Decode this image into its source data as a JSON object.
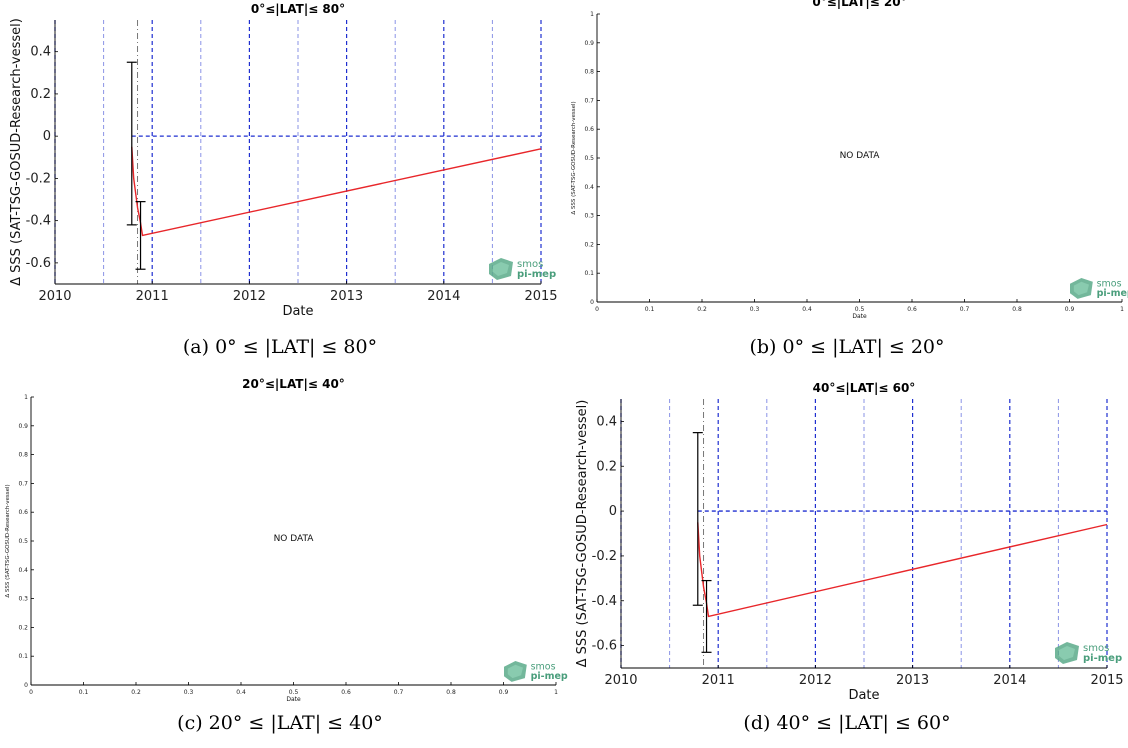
{
  "logo": {
    "line1": "smos",
    "line2": "pi-mep",
    "color": "#5aaa8a"
  },
  "colors": {
    "fit": "#e8262a",
    "dash": "#1f2fd0",
    "minor_dash": "#8a93e6",
    "errbar": "#000000"
  },
  "captions": {
    "a": "(a) 0° ≤ |LAT| ≤ 80°",
    "b": "(b) 0° ≤ |LAT| ≤ 20°",
    "c": "(c) 20° ≤ |LAT| ≤ 40°",
    "d": "(d) 40° ≤ |LAT| ≤ 60°"
  },
  "chart_data": [
    {
      "id": "a",
      "type": "line",
      "title": "0°≤|LAT|≤ 80°",
      "xlabel": "Date",
      "ylabel": "Δ SSS (SAT-TSG-GOSUD-Research-vessel)",
      "xlim": [
        2010,
        2015
      ],
      "ylim": [
        -0.7,
        0.55
      ],
      "xticks": [
        "2010",
        "2011",
        "2012",
        "2013",
        "2014",
        "2015"
      ],
      "xtick_values": [
        2010,
        2011,
        2012,
        2013,
        2014,
        2015
      ],
      "yticks": [
        "-0.6",
        "-0.4",
        "-0.2",
        "0",
        "0.2",
        "0.4"
      ],
      "ytick_values": [
        -0.6,
        -0.4,
        -0.2,
        0,
        0.2,
        0.4
      ],
      "grid": "dashed vertical at years and half-years, dashed horizontal at 0",
      "series": [
        {
          "x": [
            2010.79,
            2010.81,
            2010.85,
            2010.88,
            2010.9,
            2015.0
          ],
          "y": [
            -0.05,
            -0.2,
            -0.34,
            -0.41,
            -0.47,
            -0.06
          ]
        }
      ],
      "errorbars": [
        {
          "x": 2010.79,
          "y": -0.03,
          "low": -0.42,
          "high": 0.35
        },
        {
          "x": 2010.88,
          "y": -0.47,
          "low": -0.63,
          "high": -0.31
        }
      ]
    },
    {
      "id": "b",
      "type": "line",
      "title": "0°≤|LAT|≤ 20°",
      "xlabel": "Date",
      "ylabel": "Δ SSS (SAT-TSG-GOSUD-Research-vessel)",
      "xlim": [
        0,
        1
      ],
      "ylim": [
        0,
        1
      ],
      "xticks": [
        "0",
        "0.1",
        "0.2",
        "0.3",
        "0.4",
        "0.5",
        "0.6",
        "0.7",
        "0.8",
        "0.9",
        "1"
      ],
      "yticks": [
        "0",
        "0.1",
        "0.2",
        "0.3",
        "0.4",
        "0.5",
        "0.6",
        "0.7",
        "0.8",
        "0.9",
        "1"
      ],
      "annotation": "NO DATA",
      "series": []
    },
    {
      "id": "c",
      "type": "line",
      "title": "20°≤|LAT|≤ 40°",
      "xlabel": "Date",
      "ylabel": "Δ SSS (SAT-TSG-GOSUD-Research-vessel)",
      "xlim": [
        0,
        1
      ],
      "ylim": [
        0,
        1
      ],
      "xticks": [
        "0",
        "0.1",
        "0.2",
        "0.3",
        "0.4",
        "0.5",
        "0.6",
        "0.7",
        "0.8",
        "0.9",
        "1"
      ],
      "yticks": [
        "0",
        "0.1",
        "0.2",
        "0.3",
        "0.4",
        "0.5",
        "0.6",
        "0.7",
        "0.8",
        "0.9",
        "1"
      ],
      "annotation": "NO DATA",
      "series": []
    },
    {
      "id": "d",
      "type": "line",
      "title": "40°≤|LAT|≤ 60°",
      "xlabel": "Date",
      "ylabel": "Δ SSS (SAT-TSG-GOSUD-Research-vessel)",
      "xlim": [
        2010,
        2015
      ],
      "ylim": [
        -0.7,
        0.5
      ],
      "xticks": [
        "2010",
        "2011",
        "2012",
        "2013",
        "2014",
        "2015"
      ],
      "xtick_values": [
        2010,
        2011,
        2012,
        2013,
        2014,
        2015
      ],
      "yticks": [
        "-0.6",
        "-0.4",
        "-0.2",
        "0",
        "0.2",
        "0.4"
      ],
      "ytick_values": [
        -0.6,
        -0.4,
        -0.2,
        0,
        0.2,
        0.4
      ],
      "grid": "dashed vertical at years and half-years, dashed horizontal at 0",
      "series": [
        {
          "x": [
            2010.79,
            2010.81,
            2010.85,
            2010.88,
            2010.9,
            2015.0
          ],
          "y": [
            -0.05,
            -0.2,
            -0.34,
            -0.41,
            -0.47,
            -0.06
          ]
        }
      ],
      "errorbars": [
        {
          "x": 2010.79,
          "y": -0.03,
          "low": -0.42,
          "high": 0.35
        },
        {
          "x": 2010.88,
          "y": -0.47,
          "low": -0.63,
          "high": -0.31
        }
      ]
    }
  ]
}
